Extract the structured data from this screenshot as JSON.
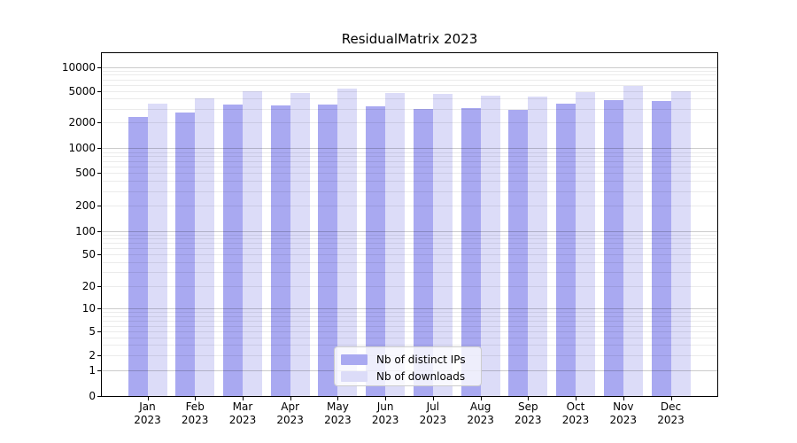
{
  "title": "ResidualMatrix 2023",
  "colors": {
    "background": "#ffffff",
    "axis": "#000000",
    "grid_major": "rgba(0,0,0,0.20)",
    "grid_minor": "rgba(0,0,0,0.08)",
    "series_ips": "#a9a9f1",
    "series_downloads": "#dcdcf8",
    "legend_border": "#cccccc"
  },
  "chart_data": {
    "type": "bar",
    "title": "ResidualMatrix 2023",
    "xlabel": "",
    "ylabel": "",
    "yscale": "symlog",
    "ylim": [
      0,
      15000
    ],
    "yticks": [
      0,
      1,
      2,
      5,
      10,
      20,
      50,
      100,
      200,
      500,
      1000,
      2000,
      5000,
      10000
    ],
    "grid": "horizontal major and minor gridlines, light gray",
    "legend_position": "lower center inside plot",
    "x_tick_months": [
      "Jan",
      "Feb",
      "Mar",
      "Apr",
      "May",
      "Jun",
      "Jul",
      "Aug",
      "Sep",
      "Oct",
      "Nov",
      "Dec"
    ],
    "x_tick_year": "2023",
    "series": [
      {
        "name": "Nb of distinct IPs",
        "color": "#a9a9f1",
        "values": [
          2350,
          2680,
          3370,
          3260,
          3400,
          3230,
          2970,
          3070,
          2870,
          3430,
          3840,
          3740
        ]
      },
      {
        "name": "Nb of downloads",
        "color": "#dcdcf8",
        "values": [
          3460,
          4040,
          4980,
          4750,
          5310,
          4710,
          4630,
          4400,
          4220,
          4870,
          5870,
          5000
        ]
      }
    ]
  }
}
